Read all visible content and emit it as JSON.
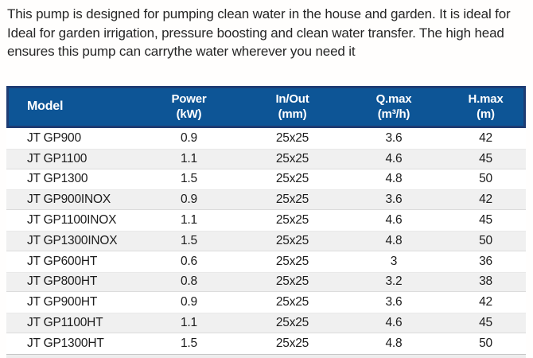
{
  "intro": {
    "lines": [
      "This pump is designed for pumping clean water in the house and garden. It is ideal for",
      "Ideal for garden irrigation, pressure boosting and clean water transfer. The high head",
      "ensures this pump can carrythe water wherever you need it"
    ]
  },
  "table": {
    "columns": [
      {
        "label": "Model",
        "unit": ""
      },
      {
        "label": "Power",
        "unit": "(kW)"
      },
      {
        "label": "In/Out",
        "unit": "(mm)"
      },
      {
        "label": "Q.max",
        "unit": "(m³/h)"
      },
      {
        "label": "H.max",
        "unit": "(m)"
      }
    ],
    "rows": [
      [
        "JT GP900",
        "0.9",
        "25x25",
        "3.6",
        "42"
      ],
      [
        "JT GP1100",
        "1.1",
        "25x25",
        "4.6",
        "45"
      ],
      [
        "JT GP1300",
        "1.5",
        "25x25",
        "4.8",
        "50"
      ],
      [
        "JT GP900INOX",
        "0.9",
        "25x25",
        "3.6",
        "42"
      ],
      [
        "JT GP1100INOX",
        "1.1",
        "25x25",
        "4.6",
        "45"
      ],
      [
        "JT GP1300INOX",
        "1.5",
        "25x25",
        "4.8",
        "50"
      ],
      [
        "JT GP600HT",
        "0.6",
        "25x25",
        "3",
        "36"
      ],
      [
        "JT GP800HT",
        "0.8",
        "25x25",
        "3.2",
        "38"
      ],
      [
        "JT GP900HT",
        "0.9",
        "25x25",
        "3.6",
        "42"
      ],
      [
        "JT GP1100HT",
        "1.1",
        "25x25",
        "4.6",
        "45"
      ],
      [
        "JT GP1300HT",
        "1.5",
        "25x25",
        "4.8",
        "50"
      ]
    ]
  },
  "colors": {
    "header_bg": "#0d5596",
    "header_border": "#1e3c73",
    "header_text": "#ffffff",
    "stripe": "#f0f0f0",
    "body_text": "#1c1c1c"
  }
}
